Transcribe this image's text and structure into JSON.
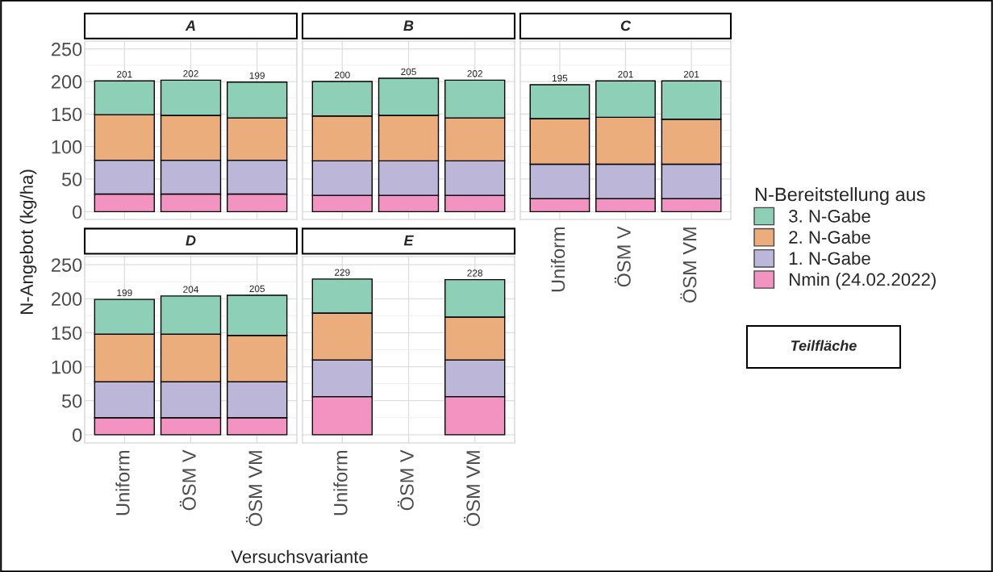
{
  "chart_data": [
    {
      "type": "bar",
      "title": "A",
      "stacked": true,
      "categories": [
        "Uniform",
        "ÖSM V",
        "ÖSM VM"
      ],
      "ylim": [
        -12,
        262
      ],
      "yticks": [
        0,
        50,
        100,
        150,
        200,
        250
      ],
      "grid": true,
      "tick_labels": "y",
      "totals": [
        "201",
        "202",
        "199"
      ],
      "legend": "right",
      "legend_title": "N-Bereitstellung aus",
      "series": [
        {
          "name": "Nmin (24.02.2022)",
          "color": "#f293c2",
          "values": [
            27,
            27,
            27
          ]
        },
        {
          "name": "1. N-Gabe",
          "color": "#bcb6d8",
          "values": [
            52,
            52,
            52
          ]
        },
        {
          "name": "2. N-Gabe",
          "color": "#ebad7c",
          "values": [
            70,
            69,
            65
          ]
        },
        {
          "name": "3. N-Gabe",
          "color": "#8ecfb7",
          "values": [
            52,
            54,
            55
          ]
        }
      ]
    },
    {
      "type": "bar",
      "title": "B",
      "stacked": true,
      "categories": [
        "Uniform",
        "ÖSM V",
        "ÖSM VM"
      ],
      "ylim": [
        -12,
        262
      ],
      "yticks": [
        0,
        50,
        100,
        150,
        200,
        250
      ],
      "grid": true,
      "tick_labels": false,
      "totals": [
        "200",
        "205",
        "202"
      ],
      "series": [
        {
          "name": "Nmin (24.02.2022)",
          "color": "#f293c2",
          "values": [
            25,
            25,
            25
          ]
        },
        {
          "name": "1. N-Gabe",
          "color": "#bcb6d8",
          "values": [
            53,
            53,
            53
          ]
        },
        {
          "name": "2. N-Gabe",
          "color": "#ebad7c",
          "values": [
            69,
            70,
            66
          ]
        },
        {
          "name": "3. N-Gabe",
          "color": "#8ecfb7",
          "values": [
            53,
            57,
            58
          ]
        }
      ]
    },
    {
      "type": "bar",
      "title": "C",
      "stacked": true,
      "categories": [
        "Uniform",
        "ÖSM V",
        "ÖSM VM"
      ],
      "ylim": [
        -12,
        262
      ],
      "yticks": [
        0,
        50,
        100,
        150,
        200,
        250
      ],
      "grid": true,
      "tick_labels": "x",
      "totals": [
        "195",
        "201",
        "201"
      ],
      "annotations": [
        "Teilfläche"
      ],
      "series": [
        {
          "name": "Nmin (24.02.2022)",
          "color": "#f293c2",
          "values": [
            20,
            20,
            20
          ]
        },
        {
          "name": "1. N-Gabe",
          "color": "#bcb6d8",
          "values": [
            53,
            53,
            53
          ]
        },
        {
          "name": "2. N-Gabe",
          "color": "#ebad7c",
          "values": [
            70,
            72,
            69
          ]
        },
        {
          "name": "3. N-Gabe",
          "color": "#8ecfb7",
          "values": [
            52,
            56,
            59
          ]
        }
      ]
    },
    {
      "type": "bar",
      "title": "D",
      "stacked": true,
      "categories": [
        "Uniform",
        "ÖSM V",
        "ÖSM VM"
      ],
      "ylim": [
        -12,
        262
      ],
      "yticks": [
        0,
        50,
        100,
        150,
        200,
        250
      ],
      "grid": true,
      "xlabel": "Versuchsvariante",
      "ylabel": "N-Angebot (kg/ha)",
      "totals": [
        "199",
        "204",
        "205"
      ],
      "series": [
        {
          "name": "Nmin (24.02.2022)",
          "color": "#f293c2",
          "values": [
            25,
            25,
            25
          ]
        },
        {
          "name": "1. N-Gabe",
          "color": "#bcb6d8",
          "values": [
            53,
            53,
            53
          ]
        },
        {
          "name": "2. N-Gabe",
          "color": "#ebad7c",
          "values": [
            70,
            70,
            68
          ]
        },
        {
          "name": "3. N-Gabe",
          "color": "#8ecfb7",
          "values": [
            51,
            56,
            59
          ]
        }
      ]
    },
    {
      "type": "bar",
      "title": "E",
      "stacked": true,
      "categories": [
        "Uniform",
        "ÖSM V",
        "ÖSM VM"
      ],
      "ylim": [
        -12,
        262
      ],
      "yticks": [
        0,
        50,
        100,
        150,
        200,
        250
      ],
      "grid": true,
      "tick_labels": "x",
      "totals": [
        "229",
        null,
        "228"
      ],
      "series": [
        {
          "name": "Nmin (24.02.2022)",
          "color": "#f293c2",
          "values": [
            56,
            null,
            56
          ]
        },
        {
          "name": "1. N-Gabe",
          "color": "#bcb6d8",
          "values": [
            54,
            null,
            54
          ]
        },
        {
          "name": "2. N-Gabe",
          "color": "#ebad7c",
          "values": [
            69,
            null,
            63
          ]
        },
        {
          "name": "3. N-Gabe",
          "color": "#8ecfb7",
          "values": [
            50,
            null,
            55
          ]
        }
      ]
    }
  ]
}
